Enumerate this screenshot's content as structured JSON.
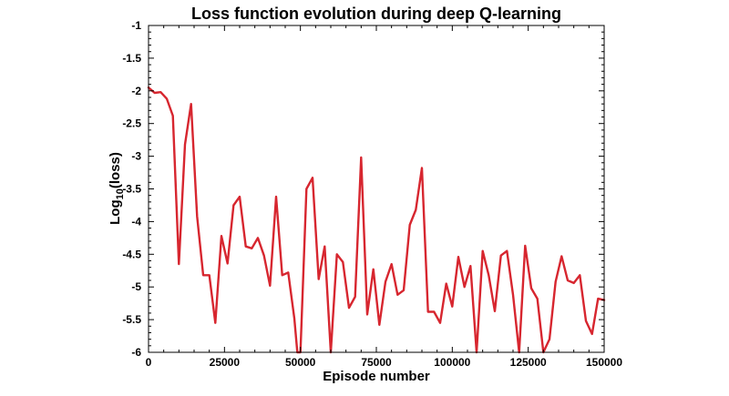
{
  "chart_data": {
    "type": "line",
    "title": "Loss function evolution during deep Q-learning",
    "xlabel": "Episode number",
    "ylabel_base": "Log",
    "ylabel_sub": "10",
    "ylabel_rest": "(loss)",
    "xlim": [
      0,
      150000
    ],
    "ylim": [
      -6,
      -1
    ],
    "x_ticks": [
      0,
      25000,
      50000,
      75000,
      100000,
      125000,
      150000
    ],
    "x_tick_labels": [
      "0",
      "25000",
      "50000",
      "75000",
      "100000",
      "125000",
      "150000"
    ],
    "y_ticks": [
      -1,
      -1.5,
      -2,
      -2.5,
      -3,
      -3.5,
      -4,
      -4.5,
      -5,
      -5.5,
      -6
    ],
    "y_tick_labels": [
      "-1",
      "-1.5",
      "-2",
      "-2.5",
      "-3",
      "-3.5",
      "-4",
      "-4.5",
      "-5",
      "-5.5",
      "-6"
    ],
    "grid": false,
    "line_color": "#d7262f",
    "series": [
      {
        "x": [
          0,
          2000,
          4000,
          6000,
          8000,
          10000,
          12000,
          14000,
          16000,
          18000,
          20000,
          22000,
          24000,
          26000,
          28000,
          30000,
          32000,
          34000,
          36000,
          38000,
          40000,
          42000,
          44000,
          46000,
          48000,
          49000,
          50000,
          52000,
          54000,
          56000,
          58000,
          60000,
          62000,
          64000,
          66000,
          68000,
          70000,
          72000,
          74000,
          76000,
          78000,
          80000,
          82000,
          84000,
          86000,
          88000,
          90000,
          92000,
          94000,
          96000,
          98000,
          100000,
          102000,
          104000,
          106000,
          108000,
          110000,
          112000,
          114000,
          116000,
          118000,
          120000,
          122000,
          124000,
          126000,
          128000,
          130000,
          132000,
          134000,
          136000,
          138000,
          140000,
          142000,
          144000,
          146000,
          148000,
          150000
        ],
        "y": [
          -1.95,
          -2.03,
          -2.02,
          -2.12,
          -2.38,
          -4.65,
          -2.82,
          -2.2,
          -3.92,
          -4.82,
          -4.82,
          -5.55,
          -4.22,
          -4.64,
          -3.75,
          -3.62,
          -4.38,
          -4.41,
          -4.25,
          -4.52,
          -4.98,
          -3.62,
          -4.82,
          -4.78,
          -5.48,
          -6.0,
          -6.0,
          -3.5,
          -3.33,
          -4.88,
          -4.38,
          -6.0,
          -4.5,
          -4.62,
          -5.32,
          -5.15,
          -3.02,
          -5.42,
          -4.73,
          -5.58,
          -4.92,
          -4.65,
          -5.12,
          -5.05,
          -4.05,
          -3.82,
          -3.18,
          -5.38,
          -5.38,
          -5.55,
          -4.95,
          -5.3,
          -4.54,
          -5.0,
          -4.68,
          -6.0,
          -4.45,
          -4.82,
          -5.37,
          -4.52,
          -4.45,
          -5.12,
          -6.0,
          -4.37,
          -5.02,
          -5.18,
          -6.0,
          -5.8,
          -4.92,
          -4.53,
          -4.9,
          -4.94,
          -4.82,
          -5.52,
          -5.72,
          -5.18,
          -5.2
        ]
      }
    ]
  }
}
